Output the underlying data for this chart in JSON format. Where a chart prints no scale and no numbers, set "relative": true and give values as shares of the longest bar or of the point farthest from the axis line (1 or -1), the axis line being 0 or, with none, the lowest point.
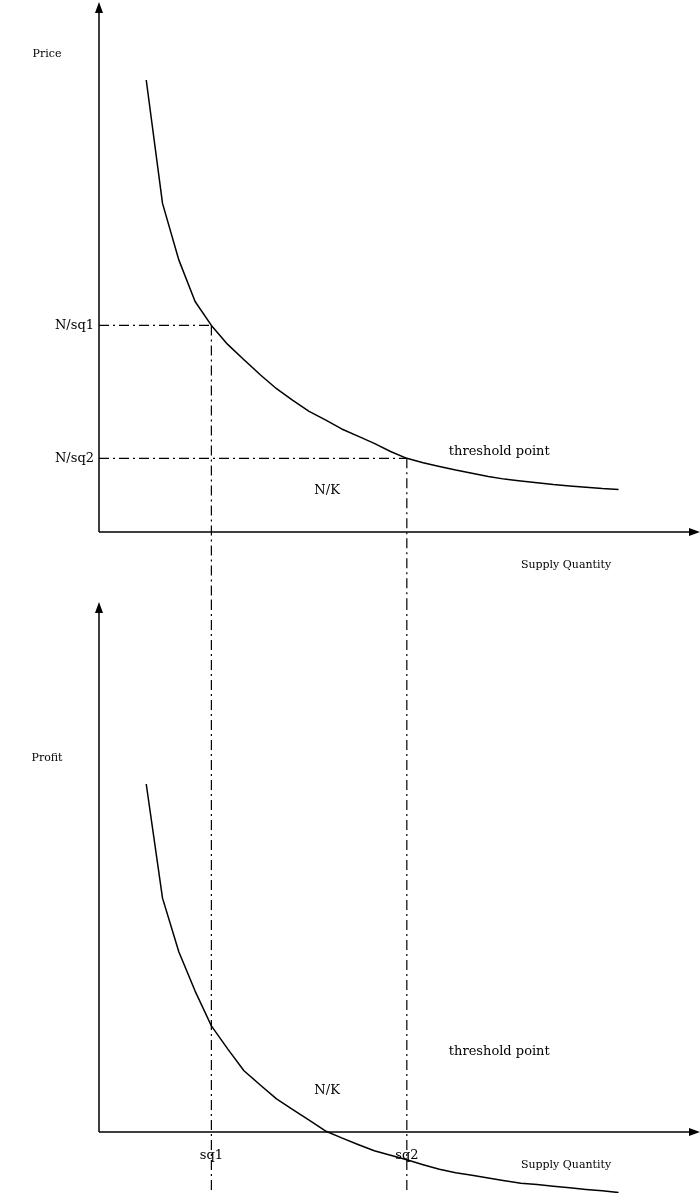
{
  "chart_data": [
    {
      "type": "line",
      "ylabel": "Price",
      "xlabel": "Supply Quantity",
      "relative": true,
      "tick_labels": false,
      "grid": false,
      "legend": false,
      "marker": "none",
      "line_style": "solid",
      "categories": [
        null,
        null,
        null,
        null,
        "sq1",
        null,
        null,
        null,
        null,
        null,
        null,
        null,
        null,
        null,
        null,
        null,
        "sq2",
        null,
        null,
        null,
        null,
        null,
        null,
        null,
        null,
        null,
        null,
        null,
        null,
        null
      ],
      "series": [
        {
          "color": "#000000",
          "values": [
            1,
            0.727,
            0.602,
            0.51,
            0.457,
            0.415,
            0.381,
            0.348,
            0.317,
            0.291,
            0.267,
            0.248,
            0.228,
            0.212,
            0.196,
            0.178,
            0.163,
            0.153,
            0.145,
            0.137,
            0.13,
            0.123,
            0.117,
            0.113,
            0.109,
            0.105,
            0.102,
            0.099,
            0.096,
            0.094
          ]
        }
      ],
      "ref_lines": [
        {
          "axis": "y",
          "value": 0.457,
          "label": "N/sq1",
          "line_style": "dashed",
          "color": "#000000"
        },
        {
          "axis": "y",
          "value": 0.163,
          "label": "N/sq2",
          "line_style": "dashed",
          "color": "#000000"
        },
        {
          "axis": "x",
          "value": "sq1",
          "line_style": "dashed",
          "color": "#000000"
        },
        {
          "axis": "x",
          "value": "sq2",
          "line_style": "dashed",
          "color": "#000000"
        }
      ],
      "annotations": [
        "threshold point",
        "N/K"
      ]
    },
    {
      "type": "line",
      "ylabel": "Profit",
      "xlabel": "Supply Quantity",
      "relative": true,
      "tick_labels": "x",
      "grid": false,
      "legend": false,
      "marker": "none",
      "line_style": "solid",
      "categories": [
        null,
        null,
        null,
        null,
        "sq1",
        null,
        null,
        null,
        null,
        null,
        null,
        null,
        null,
        null,
        null,
        null,
        "sq2",
        null,
        null,
        null,
        null,
        null,
        null,
        null,
        null,
        null,
        null,
        null,
        null,
        null
      ],
      "series": [
        {
          "color": "#000000",
          "values": [
            1,
            0.672,
            0.518,
            0.405,
            0.305,
            0.239,
            0.176,
            0.135,
            0.095,
            0.064,
            0.034,
            0.003,
            -0.017,
            -0.036,
            -0.054,
            -0.067,
            -0.08,
            -0.094,
            -0.107,
            -0.117,
            -0.124,
            -0.132,
            -0.14,
            -0.147,
            -0.151,
            -0.156,
            -0.16,
            -0.165,
            -0.169,
            -0.174
          ]
        }
      ],
      "ref_lines": [
        {
          "axis": "x",
          "value": "sq1",
          "line_style": "dashed",
          "color": "#000000"
        },
        {
          "axis": "x",
          "value": "sq2",
          "line_style": "dashed",
          "color": "#000000"
        }
      ],
      "annotations": [
        "threshold point",
        "N/K"
      ]
    }
  ]
}
